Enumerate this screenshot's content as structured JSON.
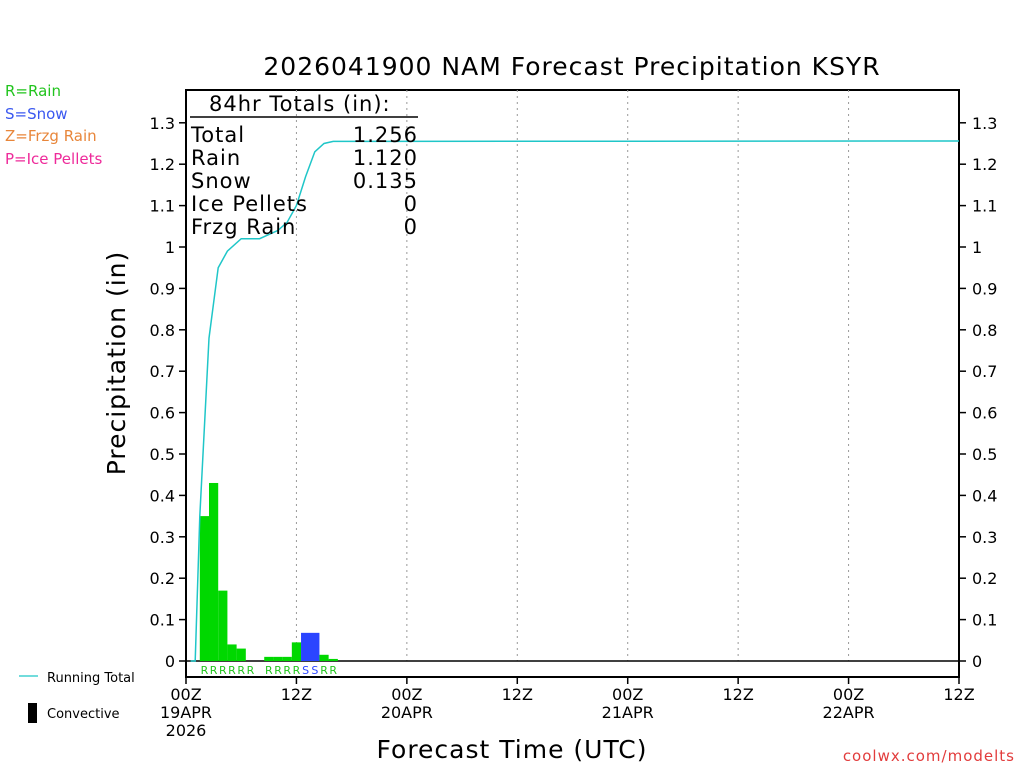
{
  "chart_data": {
    "type": "bar",
    "title": "2026041900 NAM Forecast Precipitation KSYR",
    "xlabel": "Forecast Time (UTC)",
    "ylabel": "Precipitation (in)",
    "ylim": [
      0,
      1.35
    ],
    "xlim_hours": [
      0,
      84
    ],
    "y_ticks": [
      "0",
      "0.1",
      "0.2",
      "0.3",
      "0.4",
      "0.5",
      "0.6",
      "0.7",
      "0.8",
      "0.9",
      "1",
      "1.1",
      "1.2",
      "1.3"
    ],
    "x_ticks": [
      {
        "hour": 0,
        "line1": "00Z",
        "line2": "19APR",
        "line3": "2026"
      },
      {
        "hour": 12,
        "line1": "12Z",
        "line2": "",
        "line3": ""
      },
      {
        "hour": 24,
        "line1": "00Z",
        "line2": "20APR",
        "line3": ""
      },
      {
        "hour": 36,
        "line1": "12Z",
        "line2": "",
        "line3": ""
      },
      {
        "hour": 48,
        "line1": "00Z",
        "line2": "21APR",
        "line3": ""
      },
      {
        "hour": 60,
        "line1": "12Z",
        "line2": "",
        "line3": ""
      },
      {
        "hour": 72,
        "line1": "00Z",
        "line2": "22APR",
        "line3": ""
      },
      {
        "hour": 84,
        "line1": "12Z",
        "line2": "",
        "line3": ""
      }
    ],
    "precip_bars": [
      {
        "start": 1.5,
        "end": 2.5,
        "value": 0.35,
        "type": "rain"
      },
      {
        "start": 2.5,
        "end": 3.5,
        "value": 0.43,
        "type": "rain"
      },
      {
        "start": 3.5,
        "end": 4.5,
        "value": 0.17,
        "type": "rain"
      },
      {
        "start": 4.5,
        "end": 5.5,
        "value": 0.04,
        "type": "rain"
      },
      {
        "start": 5.5,
        "end": 6.5,
        "value": 0.03,
        "type": "rain"
      },
      {
        "start": 6.5,
        "end": 7.5,
        "value": 0.0,
        "type": "rain"
      },
      {
        "start": 8.5,
        "end": 9.5,
        "value": 0.01,
        "type": "rain"
      },
      {
        "start": 9.5,
        "end": 10.5,
        "value": 0.01,
        "type": "rain"
      },
      {
        "start": 10.5,
        "end": 11.5,
        "value": 0.01,
        "type": "rain"
      },
      {
        "start": 11.5,
        "end": 12.5,
        "value": 0.045,
        "type": "rain"
      },
      {
        "start": 12.5,
        "end": 14.5,
        "value": 0.068,
        "type": "snow"
      },
      {
        "start": 14.5,
        "end": 15.5,
        "value": 0.015,
        "type": "rain"
      },
      {
        "start": 15.5,
        "end": 16.5,
        "value": 0.005,
        "type": "rain"
      }
    ],
    "ptype_labels": [
      {
        "hour": 2,
        "label": "R",
        "type": "rain"
      },
      {
        "hour": 3,
        "label": "R",
        "type": "rain"
      },
      {
        "hour": 4,
        "label": "R",
        "type": "rain"
      },
      {
        "hour": 5,
        "label": "R",
        "type": "rain"
      },
      {
        "hour": 6,
        "label": "R",
        "type": "rain"
      },
      {
        "hour": 7,
        "label": "R",
        "type": "rain"
      },
      {
        "hour": 9,
        "label": "R",
        "type": "rain"
      },
      {
        "hour": 10,
        "label": "R",
        "type": "rain"
      },
      {
        "hour": 11,
        "label": "R",
        "type": "rain"
      },
      {
        "hour": 12,
        "label": "R",
        "type": "rain"
      },
      {
        "hour": 13,
        "label": "S",
        "type": "snow"
      },
      {
        "hour": 14,
        "label": "S",
        "type": "snow"
      },
      {
        "hour": 15,
        "label": "R",
        "type": "rain"
      },
      {
        "hour": 16,
        "label": "R",
        "type": "rain"
      }
    ],
    "running_total": {
      "name": "Running Total",
      "points": [
        [
          0.5,
          0
        ],
        [
          1,
          0
        ],
        [
          1.5,
          0.35
        ],
        [
          2.5,
          0.78
        ],
        [
          3.5,
          0.95
        ],
        [
          4.5,
          0.99
        ],
        [
          6,
          1.02
        ],
        [
          8,
          1.02
        ],
        [
          10,
          1.04
        ],
        [
          11,
          1.06
        ],
        [
          12,
          1.1
        ],
        [
          13,
          1.17
        ],
        [
          14,
          1.23
        ],
        [
          15,
          1.25
        ],
        [
          16,
          1.255
        ],
        [
          84,
          1.256
        ]
      ]
    },
    "legend": {
      "ptype": [
        {
          "text": "R=Rain",
          "color": "#22c41e"
        },
        {
          "text": "S=Snow",
          "color": "#3a58f0"
        },
        {
          "text": "Z=Frzg Rain",
          "color": "#e8863a"
        },
        {
          "text": "P=Ice Pellets",
          "color": "#ee2a9a"
        }
      ],
      "running_total_label": "Running Total",
      "convective_label": "Convective"
    },
    "totals": {
      "header": "84hr Totals (in):",
      "rows": [
        {
          "label": "Total",
          "value": "1.256"
        },
        {
          "label": "Rain",
          "value": "1.120"
        },
        {
          "label": "Snow",
          "value": "0.135"
        },
        {
          "label": "Ice Pellets",
          "value": "0"
        },
        {
          "label": "Frzg Rain",
          "value": "0"
        }
      ]
    }
  },
  "colors": {
    "rain": "#00d800",
    "snow": "#2b45ff",
    "running_total": "#1fc6c8",
    "grid": "#999999"
  },
  "watermark": "coolwx.com/modelts"
}
